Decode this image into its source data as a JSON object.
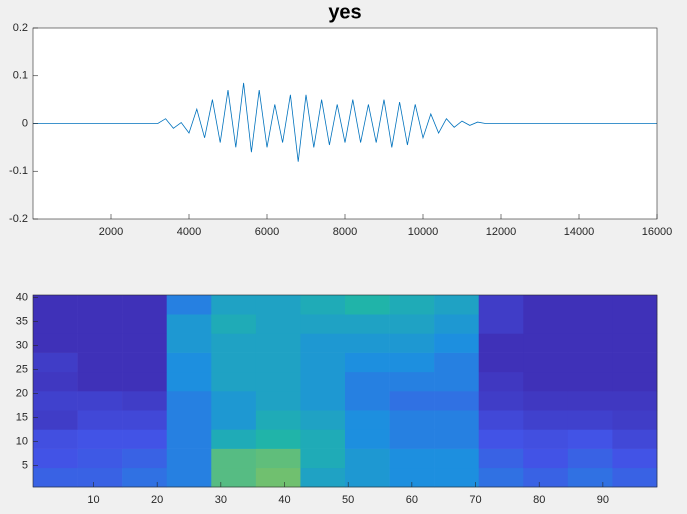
{
  "chart_data": [
    {
      "type": "line",
      "title": "yes",
      "x": [
        0,
        200,
        400,
        600,
        800,
        1000,
        1200,
        1400,
        1600,
        1800,
        2000,
        2200,
        2400,
        2600,
        2800,
        3000,
        3200,
        3400,
        3600,
        3800,
        4000,
        4200,
        4400,
        4600,
        4800,
        5000,
        5200,
        5400,
        5600,
        5800,
        6000,
        6200,
        6400,
        6600,
        6800,
        7000,
        7200,
        7400,
        7600,
        7800,
        8000,
        8200,
        8400,
        8600,
        8800,
        9000,
        9200,
        9400,
        9600,
        9800,
        10000,
        10200,
        10400,
        10600,
        10800,
        11000,
        11200,
        11400,
        11600,
        11800,
        12000,
        12200,
        12400,
        12600,
        12800,
        13000,
        13200,
        13400,
        13600,
        13800,
        14000,
        14200,
        14400,
        14600,
        14800,
        15000,
        15200,
        15400,
        15600,
        15800,
        16000
      ],
      "values": [
        0,
        0,
        0,
        0,
        0,
        0,
        0,
        0,
        0,
        0,
        0,
        0,
        0,
        0,
        0,
        0,
        0,
        0.01,
        -0.01,
        0.002,
        -0.02,
        0.03,
        -0.03,
        0.05,
        -0.04,
        0.07,
        -0.05,
        0.085,
        -0.06,
        0.07,
        -0.05,
        0.04,
        -0.04,
        0.06,
        -0.08,
        0.06,
        -0.05,
        0.05,
        -0.045,
        0.04,
        -0.04,
        0.05,
        -0.04,
        0.04,
        -0.04,
        0.05,
        -0.05,
        0.045,
        -0.045,
        0.04,
        -0.03,
        0.02,
        -0.02,
        0.01,
        -0.008,
        0.005,
        -0.004,
        0.003,
        0,
        0,
        0,
        0,
        0,
        0,
        0,
        0,
        0,
        0,
        0,
        0,
        0,
        0,
        0,
        0,
        0,
        0,
        0,
        0,
        0,
        0,
        0
      ],
      "color": "#0072bd",
      "xlim": [
        0,
        16000
      ],
      "xticks": [
        2000,
        4000,
        6000,
        8000,
        10000,
        12000,
        14000,
        16000
      ],
      "ylim": [
        -0.2,
        0.2
      ],
      "yticks": [
        -0.2,
        -0.1,
        0,
        0.1,
        0.2
      ]
    },
    {
      "type": "heatmap",
      "xbins": [
        0.5,
        7.5,
        14.5,
        21.5,
        28.5,
        35.5,
        42.5,
        49.5,
        56.5,
        63.5,
        70.5,
        77.5,
        84.5,
        91.5,
        98.5
      ],
      "ybins": [
        0.5,
        4.5,
        8.5,
        12.5,
        16.5,
        20.5,
        24.5,
        28.5,
        32.5,
        36.5,
        40.5
      ],
      "values": [
        [
          0.25,
          0.25,
          0.3,
          0.35,
          0.7,
          0.75,
          0.5,
          0.45,
          0.4,
          0.4,
          0.3,
          0.25,
          0.3,
          0.25
        ],
        [
          0.2,
          0.22,
          0.25,
          0.35,
          0.7,
          0.72,
          0.55,
          0.45,
          0.4,
          0.4,
          0.25,
          0.2,
          0.25,
          0.2
        ],
        [
          0.18,
          0.2,
          0.2,
          0.35,
          0.55,
          0.6,
          0.55,
          0.4,
          0.35,
          0.35,
          0.2,
          0.18,
          0.2,
          0.15
        ],
        [
          0.1,
          0.15,
          0.15,
          0.35,
          0.45,
          0.55,
          0.5,
          0.4,
          0.35,
          0.35,
          0.15,
          0.12,
          0.12,
          0.1
        ],
        [
          0.12,
          0.12,
          0.1,
          0.35,
          0.45,
          0.5,
          0.45,
          0.35,
          0.3,
          0.3,
          0.1,
          0.08,
          0.08,
          0.08
        ],
        [
          0.08,
          0.05,
          0.05,
          0.4,
          0.5,
          0.5,
          0.45,
          0.35,
          0.35,
          0.35,
          0.08,
          0.05,
          0.05,
          0.05
        ],
        [
          0.1,
          0.05,
          0.05,
          0.4,
          0.5,
          0.5,
          0.45,
          0.4,
          0.4,
          0.35,
          0.05,
          0.05,
          0.05,
          0.05
        ],
        [
          0.05,
          0.05,
          0.05,
          0.45,
          0.5,
          0.5,
          0.45,
          0.45,
          0.45,
          0.4,
          0.05,
          0.05,
          0.05,
          0.05
        ],
        [
          0.05,
          0.05,
          0.05,
          0.45,
          0.55,
          0.5,
          0.5,
          0.5,
          0.5,
          0.45,
          0.1,
          0.05,
          0.05,
          0.05
        ],
        [
          0.05,
          0.05,
          0.05,
          0.35,
          0.5,
          0.5,
          0.55,
          0.6,
          0.55,
          0.5,
          0.1,
          0.05,
          0.05,
          0.05
        ]
      ],
      "clim": [
        0,
        1
      ],
      "colormap": [
        "#3e26a8",
        "#4253e6",
        "#1d8fdf",
        "#20b4a9",
        "#8bc45c",
        "#f9fb15"
      ],
      "xlim": [
        0.5,
        98.5
      ],
      "xticks": [
        10,
        20,
        30,
        40,
        50,
        60,
        70,
        80,
        90
      ],
      "ylim": [
        0.5,
        40.5
      ],
      "yticks": [
        5,
        10,
        15,
        20,
        25,
        30,
        35,
        40
      ]
    }
  ]
}
